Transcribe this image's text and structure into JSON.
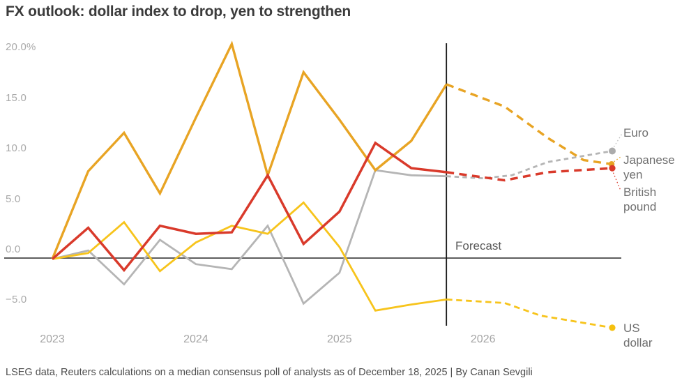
{
  "title": "FX outlook: dollar index to drop, yen to strengthen",
  "footer": "LSEG data, Reuters calculations on a median consensus poll of analysts as of December 18, 2025 | By Canan Sevgili",
  "forecast_label": "Forecast",
  "colors": {
    "japanese_yen": "#e8a424",
    "british_pound": "#d93a2b",
    "euro": "#b5b5b5",
    "us_dollar": "#f7c41c",
    "zero_axis": "#5e5e5e",
    "forecast_line": "#1b1b1b"
  },
  "chart_data": {
    "type": "line",
    "unit": "%",
    "title": "FX outlook: dollar index to drop, yen to strengthen",
    "grid": "zero-axis only",
    "forecast_start_x": 2025.745,
    "x_axis": {
      "range": [
        2023.0,
        2026.95
      ],
      "ticks": [
        {
          "value": 2023,
          "label": "2023"
        },
        {
          "value": 2024,
          "label": "2024"
        },
        {
          "value": 2025,
          "label": "2025"
        },
        {
          "value": 2026,
          "label": "2026"
        }
      ]
    },
    "y_axis": {
      "range": [
        -7.5,
        21.5
      ],
      "ticks": [
        {
          "value": 20,
          "label": "20.0%"
        },
        {
          "value": 15,
          "label": "15.0"
        },
        {
          "value": 10,
          "label": "10.0"
        },
        {
          "value": 5,
          "label": "5.0"
        },
        {
          "value": 0,
          "label": "0.0"
        },
        {
          "value": -5,
          "label": "−5.0"
        }
      ]
    },
    "series": [
      {
        "key": "euro",
        "label": "Euro",
        "color": "#b5b5b5",
        "dot_color": "#ababab",
        "solid": [
          [
            2023.0,
            -0.1
          ],
          [
            2023.25,
            0.75
          ],
          [
            2023.5,
            -2.6
          ],
          [
            2023.75,
            1.8
          ],
          [
            2024.0,
            -0.6
          ],
          [
            2024.25,
            -1.1
          ],
          [
            2024.5,
            3.2
          ],
          [
            2024.75,
            -4.5
          ],
          [
            2025.0,
            -1.45
          ],
          [
            2025.25,
            8.7
          ],
          [
            2025.5,
            8.2
          ],
          [
            2025.745,
            8.1
          ]
        ],
        "forecast": [
          [
            2025.745,
            8.1
          ],
          [
            2026.0,
            7.9
          ],
          [
            2026.2,
            8.2
          ],
          [
            2026.45,
            9.5
          ],
          [
            2026.9,
            10.6
          ]
        ],
        "end_dot": [
          2026.9,
          10.6
        ]
      },
      {
        "key": "us_dollar",
        "label": "US dollar",
        "color": "#f7c41c",
        "dot_color": "#f5c00e",
        "solid": [
          [
            2023.0,
            -0.1
          ],
          [
            2023.25,
            0.5
          ],
          [
            2023.5,
            3.55
          ],
          [
            2023.75,
            -1.3
          ],
          [
            2024.0,
            1.55
          ],
          [
            2024.25,
            3.2
          ],
          [
            2024.5,
            2.4
          ],
          [
            2024.75,
            5.5
          ],
          [
            2025.0,
            1.1
          ],
          [
            2025.25,
            -5.2
          ],
          [
            2025.5,
            -4.6
          ],
          [
            2025.745,
            -4.1
          ]
        ],
        "forecast": [
          [
            2025.745,
            -4.1
          ],
          [
            2026.15,
            -4.45
          ],
          [
            2026.4,
            -5.7
          ],
          [
            2026.9,
            -6.9
          ]
        ],
        "end_dot": [
          2026.9,
          -6.9
        ]
      },
      {
        "key": "japanese_yen",
        "label": "Japanese yen",
        "color": "#e8a424",
        "dot_color": "#e8a424",
        "solid": [
          [
            2023.0,
            -0.1
          ],
          [
            2023.25,
            8.6
          ],
          [
            2023.5,
            12.4
          ],
          [
            2023.75,
            6.4
          ],
          [
            2024.0,
            13.9
          ],
          [
            2024.25,
            21.2
          ],
          [
            2024.5,
            8.2
          ],
          [
            2024.75,
            18.4
          ],
          [
            2025.0,
            13.7
          ],
          [
            2025.25,
            8.7
          ],
          [
            2025.5,
            11.6
          ],
          [
            2025.745,
            17.2
          ]
        ],
        "forecast": [
          [
            2025.745,
            17.2
          ],
          [
            2026.15,
            15.0
          ],
          [
            2026.45,
            11.9
          ],
          [
            2026.7,
            9.7
          ],
          [
            2026.895,
            9.3
          ]
        ],
        "end_dot": [
          2026.895,
          9.3
        ]
      },
      {
        "key": "british_pound",
        "label": "British pound",
        "color": "#d93a2b",
        "dot_color": "#d93a2b",
        "solid": [
          [
            2023.0,
            -0.1
          ],
          [
            2023.25,
            3.0
          ],
          [
            2023.5,
            -1.2
          ],
          [
            2023.75,
            3.2
          ],
          [
            2024.0,
            2.4
          ],
          [
            2024.25,
            2.55
          ],
          [
            2024.5,
            8.2
          ],
          [
            2024.75,
            1.4
          ],
          [
            2025.0,
            4.6
          ],
          [
            2025.25,
            11.4
          ],
          [
            2025.5,
            8.9
          ],
          [
            2025.745,
            8.5
          ]
        ],
        "forecast": [
          [
            2025.745,
            8.5
          ],
          [
            2026.15,
            7.7
          ],
          [
            2026.45,
            8.5
          ],
          [
            2026.9,
            8.9
          ]
        ],
        "end_dot": [
          2026.9,
          8.9
        ]
      }
    ]
  }
}
